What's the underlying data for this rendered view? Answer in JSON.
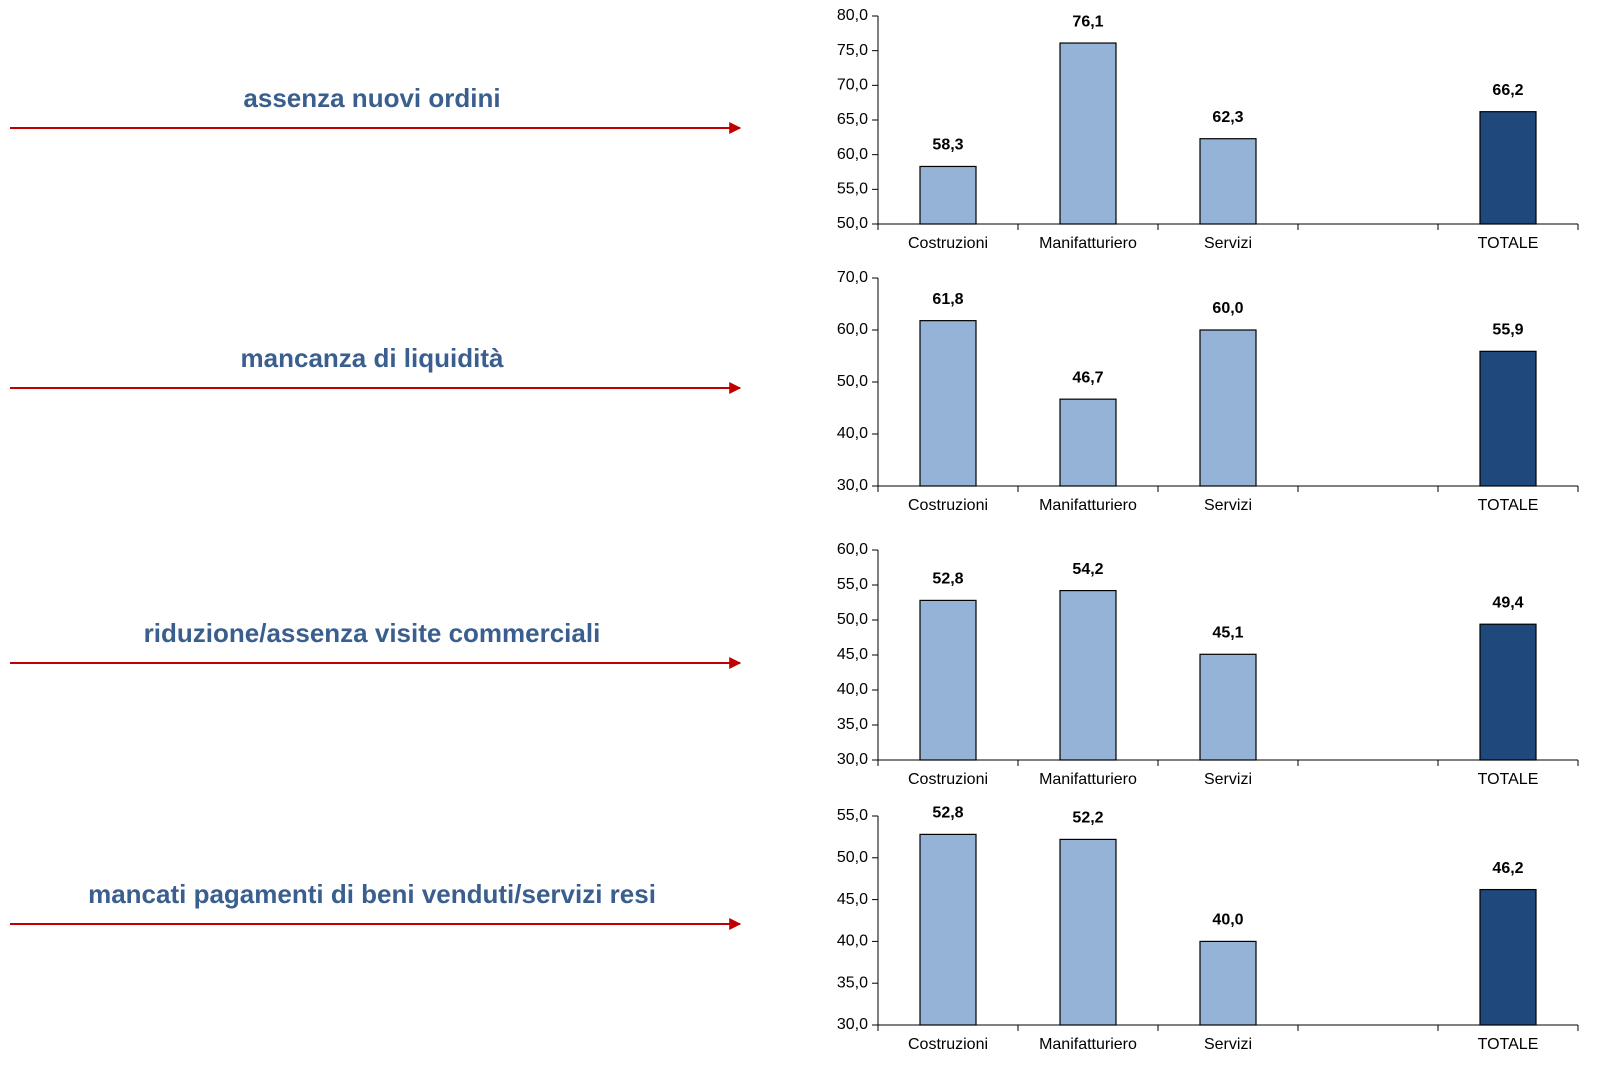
{
  "chart_data": [
    {
      "type": "bar",
      "annotation": "assenza nuovi ordini",
      "categories": [
        "Costruzioni",
        "Manifatturiero",
        "Servizi",
        null,
        "TOTALE"
      ],
      "values": [
        58.3,
        76.1,
        62.3,
        null,
        66.2
      ],
      "value_labels": [
        "58,3",
        "76,1",
        "62,3",
        null,
        "66,2"
      ],
      "colors": [
        "#95b3d7",
        "#95b3d7",
        "#95b3d7",
        null,
        "#1f497d"
      ],
      "ylim": [
        50,
        80
      ],
      "yticks": [
        {
          "value": 50,
          "label": "50,0"
        },
        {
          "value": 55,
          "label": "55,0"
        },
        {
          "value": 60,
          "label": "60,0"
        },
        {
          "value": 65,
          "label": "65,0"
        },
        {
          "value": 70,
          "label": "70,0"
        },
        {
          "value": 75,
          "label": "75,0"
        },
        {
          "value": 80,
          "label": "80,0"
        }
      ]
    },
    {
      "type": "bar",
      "annotation": "mancanza di liquidità",
      "categories": [
        "Costruzioni",
        "Manifatturiero",
        "Servizi",
        null,
        "TOTALE"
      ],
      "values": [
        61.8,
        46.7,
        60.0,
        null,
        55.9
      ],
      "value_labels": [
        "61,8",
        "46,7",
        "60,0",
        null,
        "55,9"
      ],
      "colors": [
        "#95b3d7",
        "#95b3d7",
        "#95b3d7",
        null,
        "#1f497d"
      ],
      "ylim": [
        30,
        70
      ],
      "yticks": [
        {
          "value": 30,
          "label": "30,0"
        },
        {
          "value": 40,
          "label": "40,0"
        },
        {
          "value": 50,
          "label": "50,0"
        },
        {
          "value": 60,
          "label": "60,0"
        },
        {
          "value": 70,
          "label": "70,0"
        }
      ]
    },
    {
      "type": "bar",
      "annotation": "riduzione/assenza visite commerciali",
      "categories": [
        "Costruzioni",
        "Manifatturiero",
        "Servizi",
        null,
        "TOTALE"
      ],
      "values": [
        52.8,
        54.2,
        45.1,
        null,
        49.4
      ],
      "value_labels": [
        "52,8",
        "54,2",
        "45,1",
        null,
        "49,4"
      ],
      "colors": [
        "#95b3d7",
        "#95b3d7",
        "#95b3d7",
        null,
        "#1f497d"
      ],
      "ylim": [
        30,
        60
      ],
      "yticks": [
        {
          "value": 30,
          "label": "30,0"
        },
        {
          "value": 35,
          "label": "35,0"
        },
        {
          "value": 40,
          "label": "40,0"
        },
        {
          "value": 45,
          "label": "45,0"
        },
        {
          "value": 50,
          "label": "50,0"
        },
        {
          "value": 55,
          "label": "55,0"
        },
        {
          "value": 60,
          "label": "60,0"
        }
      ]
    },
    {
      "type": "bar",
      "annotation": "mancati pagamenti di beni venduti/servizi resi",
      "categories": [
        "Costruzioni",
        "Manifatturiero",
        "Servizi",
        null,
        "TOTALE"
      ],
      "values": [
        52.8,
        52.2,
        40.0,
        null,
        46.2
      ],
      "value_labels": [
        "52,8",
        "52,2",
        "40,0",
        null,
        "46,2"
      ],
      "colors": [
        "#95b3d7",
        "#95b3d7",
        "#95b3d7",
        null,
        "#1f497d"
      ],
      "ylim": [
        30,
        55
      ],
      "yticks": [
        {
          "value": 30,
          "label": "30,0"
        },
        {
          "value": 35,
          "label": "35,0"
        },
        {
          "value": 40,
          "label": "40,0"
        },
        {
          "value": 45,
          "label": "45,0"
        },
        {
          "value": 50,
          "label": "50,0"
        },
        {
          "value": 55,
          "label": "55,0"
        }
      ]
    }
  ]
}
